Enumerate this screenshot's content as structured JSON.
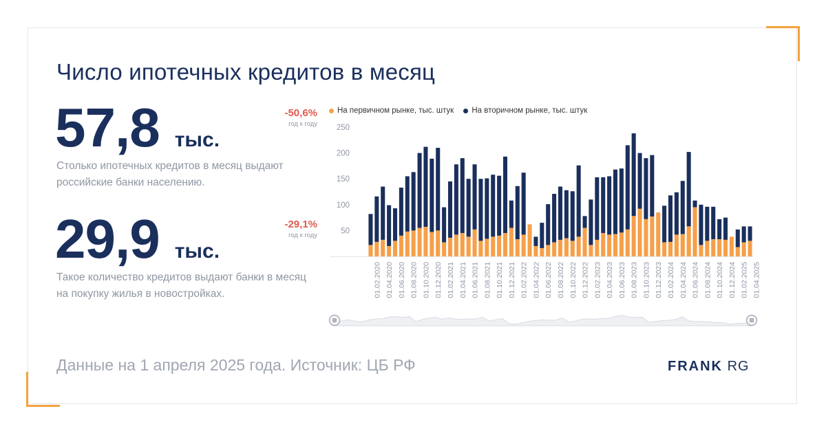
{
  "title": "Число ипотечных кредитов в месяц",
  "stats": [
    {
      "value": "57,8",
      "unit": "тыс.",
      "delta": "-50,6%",
      "delta_sub": "год к году",
      "description": "Столько ипотечных кредитов в месяц выдают российские банки населению."
    },
    {
      "value": "29,9",
      "unit": "тыс.",
      "delta": "-29,1%",
      "delta_sub": "год к году",
      "description": "Такое количество кредитов выдают банки в месяц на покупку жилья в новостройках."
    }
  ],
  "footer": "Данные на 1 апреля 2025 года. Источник: ЦБ РФ",
  "logo": {
    "bold": "FRANK",
    "light": "RG"
  },
  "colors": {
    "primary": "#f6a04a",
    "secondary": "#1a2f5c",
    "accent": "#f4a23c",
    "negative": "#e05a4e"
  },
  "chart_data": {
    "type": "bar",
    "stacked": true,
    "legend_position": "top",
    "grid": false,
    "ylim": [
      0,
      250
    ],
    "yticks": [
      50,
      100,
      150,
      200,
      250
    ],
    "xtick_labels": [
      "01.02.2020",
      "01.04.2020",
      "01.06.2020",
      "01.08.2020",
      "01.10.2020",
      "01.12.2020",
      "01.02.2021",
      "01.04.2021",
      "01.06.2021",
      "01.08.2021",
      "01.10.2021",
      "01.12.2021",
      "01.02.2022",
      "01.04.2022",
      "01.06.2022",
      "01.08.2022",
      "01.10.2022",
      "01.12.2022",
      "01.02.2023",
      "01.04.2023",
      "01.06.2023",
      "01.08.2023",
      "01.10.2023",
      "01.12.2023",
      "01.02.2024",
      "01.04.2024",
      "01.06.2024",
      "01.08.2024",
      "01.10.2024",
      "01.12.2024",
      "01.02.2025",
      "01.04.2025"
    ],
    "series": [
      {
        "name": "На первичном рынке, тыс. штук",
        "color": "#f6a04a",
        "values": [
          22,
          28,
          32,
          20,
          30,
          40,
          48,
          50,
          55,
          57,
          47,
          50,
          27,
          36,
          42,
          45,
          38,
          52,
          30,
          34,
          38,
          40,
          45,
          55,
          33,
          42,
          62,
          20,
          16,
          22,
          27,
          32,
          35,
          30,
          38,
          55,
          22,
          32,
          45,
          42,
          43,
          46,
          52,
          78,
          92,
          72,
          77,
          85,
          27,
          28,
          42,
          43,
          58,
          95,
          22,
          30,
          33,
          33,
          32,
          38,
          18,
          27,
          30
        ],
        "total": [
          82,
          116,
          135,
          99,
          93,
          133,
          155,
          163,
          200,
          212,
          189,
          210,
          95,
          145,
          178,
          190,
          150,
          178,
          150,
          151,
          158,
          156,
          193,
          108,
          136,
          162,
          51,
          38,
          65,
          101,
          121,
          135,
          128,
          126,
          176,
          78,
          110,
          153,
          153,
          155,
          168,
          170,
          215,
          238,
          200,
          190,
          196,
          76,
          98,
          118,
          124,
          146,
          202,
          108,
          100,
          96,
          96,
          72,
          75,
          36,
          52,
          58,
          58
        ]
      }
    ],
    "x": [
      "01.01.2020",
      "01.02.2020",
      "01.03.2020",
      "01.04.2020",
      "01.05.2020",
      "01.06.2020",
      "01.07.2020",
      "01.08.2020",
      "01.09.2020",
      "01.10.2020",
      "01.11.2020",
      "01.12.2020",
      "01.01.2021",
      "01.02.2021",
      "01.03.2021",
      "01.04.2021",
      "01.05.2021",
      "01.06.2021",
      "01.07.2021",
      "01.08.2021",
      "01.09.2021",
      "01.10.2021",
      "01.11.2021",
      "01.12.2021",
      "01.01.2022",
      "01.02.2022",
      "01.03.2022",
      "01.04.2022",
      "01.05.2022",
      "01.06.2022",
      "01.07.2022",
      "01.08.2022",
      "01.09.2022",
      "01.10.2022",
      "01.11.2022",
      "01.12.2022",
      "01.01.2023",
      "01.02.2023",
      "01.03.2023",
      "01.04.2023",
      "01.05.2023",
      "01.06.2023",
      "01.07.2023",
      "01.08.2023",
      "01.09.2023",
      "01.10.2023",
      "01.11.2023",
      "01.12.2023",
      "01.01.2024",
      "01.02.2024",
      "01.03.2024",
      "01.04.2024",
      "01.05.2024",
      "01.06.2024",
      "01.07.2024",
      "01.08.2024",
      "01.09.2024",
      "01.10.2024",
      "01.11.2024",
      "01.12.2024",
      "01.01.2025",
      "01.02.2025",
      "01.03.2025"
    ],
    "primary": [
      22,
      28,
      32,
      20,
      30,
      40,
      48,
      50,
      55,
      57,
      47,
      50,
      27,
      36,
      42,
      45,
      38,
      52,
      30,
      34,
      38,
      40,
      45,
      55,
      33,
      42,
      62,
      20,
      16,
      22,
      27,
      32,
      35,
      30,
      38,
      55,
      22,
      32,
      45,
      42,
      43,
      46,
      52,
      78,
      92,
      72,
      77,
      85,
      27,
      28,
      42,
      43,
      58,
      95,
      22,
      30,
      33,
      33,
      32,
      38,
      18,
      27,
      30
    ],
    "secondary": [
      60,
      88,
      103,
      79,
      63,
      93,
      107,
      113,
      145,
      155,
      142,
      160,
      68,
      109,
      136,
      145,
      112,
      126,
      120,
      117,
      120,
      116,
      148,
      53,
      103,
      120,
      -11,
      18,
      49,
      79,
      94,
      103,
      93,
      96,
      138,
      23,
      88,
      121,
      108,
      113,
      125,
      124,
      163,
      160,
      108,
      118,
      119,
      -9,
      71,
      90,
      82,
      103,
      144,
      13,
      78,
      66,
      63,
      39,
      43,
      -2,
      34,
      31,
      28
    ],
    "series_names": [
      "На первичном рынке, тыс. штук",
      "На вторичном рынке, тыс. штук"
    ]
  }
}
